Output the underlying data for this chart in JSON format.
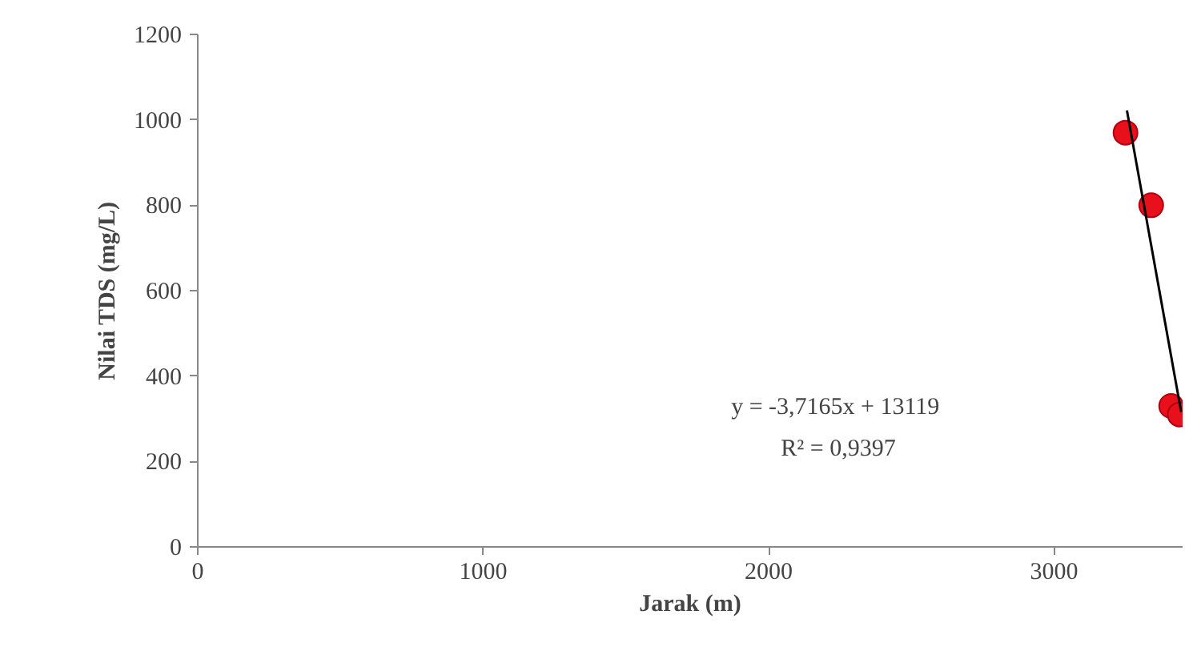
{
  "chart_data": {
    "type": "scatter",
    "xlabel": "Jarak (m)",
    "ylabel": "Nilai TDS (mg/L)",
    "xlim": [
      0,
      3450
    ],
    "ylim": [
      0,
      1200
    ],
    "xticks": [
      0,
      1000,
      2000,
      3000
    ],
    "yticks": [
      0,
      200,
      400,
      600,
      800,
      1000,
      1200
    ],
    "grid": false,
    "series": [
      {
        "color": "#e8101a",
        "marker": "circle",
        "x": [
          3250,
          3340,
          3410,
          3440
        ],
        "values": [
          970,
          800,
          330,
          310
        ]
      },
      {
        "type": "line",
        "color": "#000000",
        "line_style": "solid",
        "x": [
          3255,
          3445
        ],
        "values": [
          1022,
          316
        ]
      }
    ],
    "annotations": [
      "y = -3,7165x  + 13119",
      "R² = 0,9397"
    ]
  }
}
